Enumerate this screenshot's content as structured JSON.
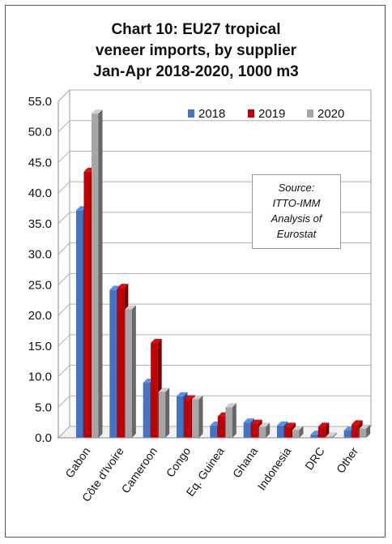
{
  "chart_data": {
    "type": "bar",
    "title_lines": [
      "Chart 10: EU27 tropical",
      "veneer imports, by supplier",
      "Jan-Apr 2018-2020, 1000 m3"
    ],
    "categories": [
      "Gabon",
      "Côte d'Ivoire",
      "Cameroon",
      "Congo",
      "Eq. Guinea",
      "Ghana",
      "Indonesia",
      "DRC",
      "Other"
    ],
    "series": [
      {
        "name": "2018",
        "color": "#4472C4",
        "values": [
          37.2,
          24.2,
          9.0,
          6.8,
          2.0,
          2.5,
          2.0,
          0.5,
          1.2
        ]
      },
      {
        "name": "2019",
        "color": "#C00000",
        "values": [
          43.5,
          24.5,
          15.5,
          6.3,
          3.5,
          2.3,
          1.8,
          1.8,
          2.2
        ]
      },
      {
        "name": "2020",
        "color": "#A6A6A6",
        "values": [
          53.0,
          21.0,
          7.5,
          6.3,
          5.0,
          1.8,
          1.3,
          0.2,
          1.5
        ]
      }
    ],
    "yticks": [
      "0.0",
      "5.0",
      "10.0",
      "15.0",
      "20.0",
      "25.0",
      "30.0",
      "35.0",
      "40.0",
      "45.0",
      "50.0",
      "55.0"
    ],
    "ylim": [
      0,
      55
    ],
    "legend_position": "top-right",
    "source_lines": [
      "Source:",
      "ITTO-IMM",
      "Analysis of",
      "Eurostat"
    ]
  }
}
